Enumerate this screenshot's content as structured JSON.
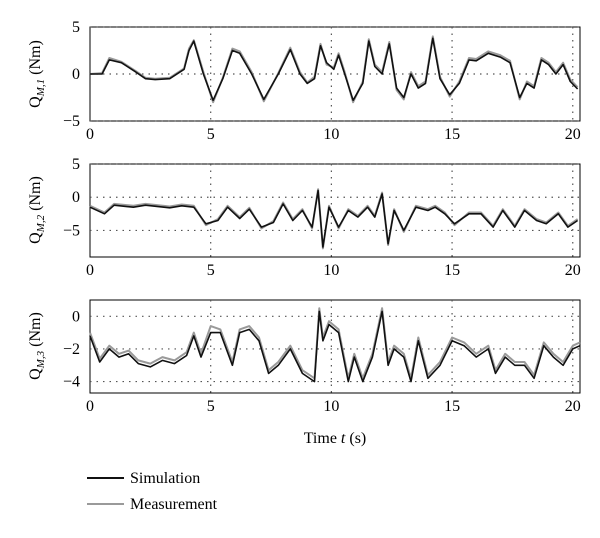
{
  "chart_data": [
    {
      "type": "line",
      "ylabel": "Q_{M,1} (Nm)",
      "ylabel_main": "Q",
      "ylabel_sub": "M,1",
      "ylabel_unit": " (Nm)",
      "xlim": [
        0,
        20.3
      ],
      "ylim": [
        -5,
        5
      ],
      "xticks": [
        0,
        5,
        10,
        15,
        20
      ],
      "yticks": [
        5,
        0,
        -5
      ],
      "grid": "dotted",
      "series": [
        {
          "name": "Simulation",
          "x": [
            0,
            0.5,
            0.8,
            1.3,
            1.9,
            2.3,
            2.7,
            3.3,
            3.9,
            4.1,
            4.3,
            4.7,
            5.1,
            5.5,
            5.9,
            6.2,
            6.7,
            7.2,
            7.8,
            8.3,
            8.7,
            9.0,
            9.3,
            9.55,
            9.8,
            10.1,
            10.3,
            10.55,
            10.9,
            11.3,
            11.55,
            11.8,
            12.1,
            12.4,
            12.7,
            13.0,
            13.3,
            13.6,
            13.9,
            14.2,
            14.5,
            14.9,
            15.3,
            15.7,
            16.0,
            16.5,
            17.0,
            17.4,
            17.8,
            18.1,
            18.4,
            18.7,
            19.0,
            19.3,
            19.6,
            19.9,
            20.2
          ],
          "y": [
            0,
            0,
            1.5,
            1.2,
            0.2,
            -0.5,
            -0.6,
            -0.5,
            0.5,
            2.5,
            3.5,
            0,
            -2.8,
            -0.5,
            2.5,
            2.2,
            0,
            -2.7,
            0,
            2.6,
            0,
            -1,
            -0.5,
            3.0,
            1.2,
            0.5,
            2.0,
            0,
            -2.8,
            -1,
            3.5,
            0.8,
            0,
            3.2,
            -1.5,
            -2.5,
            0,
            -1.5,
            -1,
            3.8,
            -0.5,
            -2.2,
            -1,
            1.5,
            1.4,
            2.2,
            1.8,
            1.2,
            -2.5,
            -1,
            -1.5,
            1.5,
            1.0,
            0,
            1.0,
            -0.8,
            -1.6
          ]
        },
        {
          "name": "Measurement",
          "x": [
            0,
            0.5,
            0.8,
            1.3,
            1.9,
            2.3,
            2.7,
            3.3,
            3.9,
            4.1,
            4.3,
            4.7,
            5.1,
            5.5,
            5.9,
            6.2,
            6.7,
            7.2,
            7.8,
            8.3,
            8.7,
            9.0,
            9.3,
            9.55,
            9.8,
            10.1,
            10.3,
            10.55,
            10.9,
            11.3,
            11.55,
            11.8,
            12.1,
            12.4,
            12.7,
            13.0,
            13.3,
            13.6,
            13.9,
            14.2,
            14.5,
            14.9,
            15.3,
            15.7,
            16.0,
            16.5,
            17.0,
            17.4,
            17.8,
            18.1,
            18.4,
            18.7,
            19.0,
            19.3,
            19.6,
            19.9,
            20.2
          ],
          "y": [
            0,
            0.1,
            1.7,
            1.3,
            0.3,
            -0.4,
            -0.5,
            -0.4,
            0.6,
            2.7,
            3.6,
            0.2,
            -3.0,
            -0.4,
            2.7,
            2.4,
            0.2,
            -2.9,
            0.1,
            2.8,
            0.2,
            -0.9,
            -0.3,
            3.2,
            1.0,
            0.7,
            2.2,
            0.2,
            -3.0,
            -0.8,
            3.7,
            1.0,
            0.2,
            3.4,
            -1.7,
            -2.7,
            0.2,
            -1.3,
            -0.8,
            4.0,
            -0.3,
            -2.4,
            -0.8,
            1.7,
            1.6,
            2.4,
            2.0,
            1.4,
            -2.7,
            -0.8,
            -1.3,
            1.7,
            1.2,
            0.2,
            1.2,
            -0.6,
            -1.4
          ]
        }
      ]
    },
    {
      "type": "line",
      "ylabel": "Q_{M,2} (Nm)",
      "ylabel_main": "Q",
      "ylabel_sub": "M,2",
      "ylabel_unit": " (Nm)",
      "xlim": [
        0,
        20.3
      ],
      "ylim": [
        -9,
        5
      ],
      "xticks": [
        0,
        5,
        10,
        15,
        20
      ],
      "yticks": [
        5,
        0,
        -5
      ],
      "grid": "dotted",
      "series": [
        {
          "name": "Simulation",
          "x": [
            0,
            0.6,
            1.0,
            1.8,
            2.3,
            3.3,
            3.8,
            4.3,
            4.8,
            5.3,
            5.7,
            6.2,
            6.6,
            7.1,
            7.6,
            8.0,
            8.4,
            8.8,
            9.2,
            9.45,
            9.65,
            9.9,
            10.3,
            10.7,
            11.1,
            11.5,
            11.8,
            12.1,
            12.35,
            12.6,
            13.0,
            13.5,
            14.0,
            14.3,
            14.7,
            15.1,
            15.7,
            16.2,
            16.7,
            17.1,
            17.6,
            18.0,
            18.5,
            18.9,
            19.4,
            19.8,
            20.2
          ],
          "y": [
            -1.5,
            -2.5,
            -1.2,
            -1.5,
            -1.2,
            -1.6,
            -1.3,
            -1.5,
            -4,
            -3.5,
            -1.5,
            -3.2,
            -1.8,
            -4.5,
            -3.8,
            -1.0,
            -3.5,
            -2.0,
            -4.5,
            1.0,
            -7.5,
            -1.5,
            -4.5,
            -2.0,
            -3.0,
            -1.5,
            -3.0,
            0.5,
            -7.0,
            -2.0,
            -5.0,
            -1.5,
            -2.0,
            -1.5,
            -2.5,
            -4.0,
            -2.5,
            -2.5,
            -4.5,
            -2.0,
            -4.5,
            -2.0,
            -3.5,
            -4.0,
            -2.5,
            -4.5,
            -3.5
          ]
        },
        {
          "name": "Measurement",
          "x": [
            0,
            0.6,
            1.0,
            1.8,
            2.3,
            3.3,
            3.8,
            4.3,
            4.8,
            5.3,
            5.7,
            6.2,
            6.6,
            7.1,
            7.6,
            8.0,
            8.4,
            8.8,
            9.2,
            9.45,
            9.65,
            9.9,
            10.3,
            10.7,
            11.1,
            11.5,
            11.8,
            12.1,
            12.35,
            12.6,
            13.0,
            13.5,
            14.0,
            14.3,
            14.7,
            15.1,
            15.7,
            16.2,
            16.7,
            17.1,
            17.6,
            18.0,
            18.5,
            18.9,
            19.4,
            19.8,
            20.2
          ],
          "y": [
            -1.3,
            -2.3,
            -1.0,
            -1.3,
            -1.0,
            -1.4,
            -1.1,
            -1.3,
            -4.2,
            -3.3,
            -1.3,
            -3.0,
            -1.6,
            -4.7,
            -3.6,
            -0.8,
            -3.3,
            -1.8,
            -4.7,
            1.2,
            -7.7,
            -1.3,
            -4.7,
            -1.8,
            -2.8,
            -1.3,
            -2.8,
            0.7,
            -7.2,
            -1.8,
            -5.2,
            -1.3,
            -1.8,
            -1.3,
            -2.3,
            -4.2,
            -2.3,
            -2.3,
            -4.3,
            -1.8,
            -4.3,
            -1.8,
            -3.3,
            -3.8,
            -2.3,
            -4.3,
            -3.3
          ]
        }
      ]
    },
    {
      "type": "line",
      "ylabel": "Q_{M,3} (Nm)",
      "ylabel_main": "Q",
      "ylabel_sub": "M,3",
      "ylabel_unit": " (Nm)",
      "xlabel": "Time t (s)",
      "xlabel_main": "Time ",
      "xlabel_var": "t",
      "xlabel_unit": " (s)",
      "xlim": [
        0,
        20.3
      ],
      "ylim": [
        -4.7,
        1
      ],
      "xticks": [
        0,
        5,
        10,
        15,
        20
      ],
      "yticks": [
        0,
        -2,
        -4
      ],
      "grid": "dotted",
      "series": [
        {
          "name": "Simulation",
          "x": [
            0,
            0.4,
            0.8,
            1.2,
            1.6,
            2.0,
            2.5,
            3.0,
            3.5,
            4.0,
            4.3,
            4.6,
            5.0,
            5.4,
            5.9,
            6.2,
            6.6,
            7.0,
            7.4,
            7.8,
            8.3,
            8.8,
            9.3,
            9.5,
            9.65,
            9.9,
            10.3,
            10.7,
            10.95,
            11.3,
            11.7,
            12.1,
            12.35,
            12.6,
            13.0,
            13.3,
            13.6,
            14.0,
            14.5,
            15.0,
            15.5,
            16.0,
            16.5,
            16.8,
            17.2,
            17.6,
            18.0,
            18.4,
            18.8,
            19.2,
            19.6,
            20.0,
            20.3
          ],
          "y": [
            -1.2,
            -2.8,
            -2.0,
            -2.5,
            -2.3,
            -2.9,
            -3.1,
            -2.7,
            -2.9,
            -2.4,
            -1.2,
            -2.5,
            -1.0,
            -1.0,
            -3.0,
            -1.0,
            -0.8,
            -1.5,
            -3.5,
            -3.0,
            -2.0,
            -3.5,
            -4.0,
            0.3,
            -1.5,
            -0.5,
            -1.0,
            -4.0,
            -2.5,
            -4.0,
            -2.5,
            0.3,
            -3.0,
            -2.0,
            -2.5,
            -4.0,
            -1.5,
            -3.8,
            -3.0,
            -1.5,
            -1.8,
            -2.5,
            -2.0,
            -3.5,
            -2.5,
            -3.0,
            -3.0,
            -3.8,
            -1.8,
            -2.5,
            -3.0,
            -2.0,
            -1.8
          ]
        },
        {
          "name": "Measurement",
          "x": [
            0,
            0.4,
            0.8,
            1.2,
            1.6,
            2.0,
            2.5,
            3.0,
            3.5,
            4.0,
            4.3,
            4.6,
            5.0,
            5.4,
            5.9,
            6.2,
            6.6,
            7.0,
            7.4,
            7.8,
            8.3,
            8.8,
            9.3,
            9.5,
            9.65,
            9.9,
            10.3,
            10.7,
            10.95,
            11.3,
            11.7,
            12.1,
            12.35,
            12.6,
            13.0,
            13.3,
            13.6,
            14.0,
            14.5,
            15.0,
            15.5,
            16.0,
            16.5,
            16.8,
            17.2,
            17.6,
            18.0,
            18.4,
            18.8,
            19.2,
            19.6,
            20.0,
            20.3
          ],
          "y": [
            -1.0,
            -2.6,
            -1.8,
            -2.3,
            -2.1,
            -2.7,
            -2.9,
            -2.5,
            -2.7,
            -2.2,
            -1.0,
            -2.3,
            -0.6,
            -0.8,
            -2.8,
            -0.8,
            -0.6,
            -1.3,
            -3.3,
            -2.8,
            -1.8,
            -3.3,
            -3.8,
            0.5,
            -1.3,
            -0.3,
            -0.8,
            -3.8,
            -2.3,
            -3.8,
            -2.3,
            0.5,
            -2.8,
            -1.8,
            -2.3,
            -3.8,
            -1.3,
            -3.6,
            -2.8,
            -1.3,
            -1.6,
            -2.3,
            -1.8,
            -3.3,
            -2.3,
            -2.8,
            -2.8,
            -3.6,
            -1.6,
            -2.3,
            -2.8,
            -1.8,
            -1.6
          ]
        }
      ]
    }
  ],
  "legend": {
    "placement": "bottom-left",
    "items": [
      {
        "label": "Simulation",
        "color": "#111111"
      },
      {
        "label": "Measurement",
        "color": "#9a9a9a"
      }
    ]
  },
  "colors": {
    "simulation": "#111111",
    "measurement": "#9a9a9a",
    "grid": "#555555",
    "axes": "#000000"
  }
}
